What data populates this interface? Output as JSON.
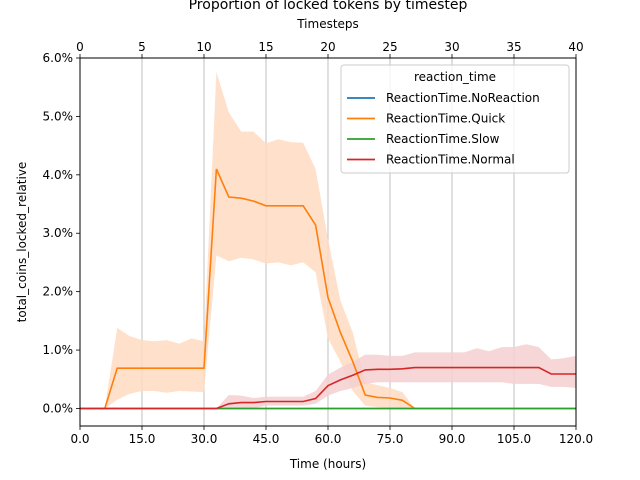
{
  "chart_data": {
    "type": "line",
    "title": "Proportion of locked tokens by timestep",
    "xlabel": "Time (hours)",
    "ylabel": "total_coins_locked_relative",
    "top_xlabel": "Timesteps",
    "xlim": [
      0,
      120
    ],
    "ylim": [
      -0.3,
      6.0
    ],
    "top_xlim": [
      0,
      40
    ],
    "x_ticks": [
      0,
      15,
      30,
      45,
      60,
      75,
      90,
      105,
      120
    ],
    "x_tick_labels": [
      "0.0",
      "15.0",
      "30.0",
      "45.0",
      "60.0",
      "75.0",
      "90.0",
      "105.0",
      "120.0"
    ],
    "top_x_ticks": [
      0,
      5,
      10,
      15,
      20,
      25,
      30,
      35,
      40
    ],
    "top_x_tick_labels": [
      "0",
      "5",
      "10",
      "15",
      "20",
      "25",
      "30",
      "35",
      "40"
    ],
    "y_ticks": [
      0,
      1,
      2,
      3,
      4,
      5,
      6
    ],
    "y_tick_labels": [
      "0.0%",
      "1.0%",
      "2.0%",
      "3.0%",
      "4.0%",
      "5.0%",
      "6.0%"
    ],
    "grid": "vertical lines at top axis ticks",
    "legend": {
      "title": "reaction_time",
      "placement": "top-right"
    },
    "series": [
      {
        "name": "ReactionTime.NoReaction",
        "color": "#1f77b4",
        "x": [
          0,
          120
        ],
        "y": [
          0,
          0
        ]
      },
      {
        "name": "ReactionTime.Quick",
        "color": "#ff7f0e",
        "band_color": "#ffdcc2",
        "x": [
          0,
          3,
          6,
          9,
          12,
          15,
          18,
          21,
          24,
          27,
          30,
          33,
          36,
          39,
          42,
          45,
          48,
          51,
          54,
          57,
          60,
          63,
          66,
          69,
          72,
          75,
          78,
          81,
          84,
          87,
          90,
          93,
          96,
          99,
          102,
          105,
          108,
          111,
          114,
          117,
          120
        ],
        "y": [
          0,
          0,
          0,
          0.69,
          0.69,
          0.69,
          0.69,
          0.69,
          0.69,
          0.69,
          0.69,
          4.1,
          3.62,
          3.6,
          3.55,
          3.47,
          3.47,
          3.47,
          3.47,
          3.14,
          1.9,
          1.3,
          0.8,
          0.23,
          0.19,
          0.18,
          0.14,
          0,
          0,
          0,
          0,
          0,
          0,
          0,
          0,
          0,
          0,
          0,
          0,
          0,
          0
        ],
        "lower": [
          0,
          0,
          0,
          0.15,
          0.25,
          0.3,
          0.3,
          0.27,
          0.3,
          0.29,
          0.28,
          2.62,
          2.52,
          2.58,
          2.55,
          2.48,
          2.5,
          2.45,
          2.5,
          2.33,
          1.2,
          0.8,
          0.3,
          0.05,
          0.02,
          0.01,
          0,
          0,
          0,
          0,
          0,
          0,
          0,
          0,
          0,
          0,
          0,
          0,
          0,
          0,
          0
        ],
        "upper": [
          0,
          0,
          0,
          1.38,
          1.24,
          1.17,
          1.15,
          1.17,
          1.11,
          1.2,
          1.15,
          5.76,
          5.07,
          4.74,
          4.74,
          4.54,
          4.61,
          4.56,
          4.55,
          4.1,
          2.9,
          1.85,
          1.3,
          0.45,
          0.4,
          0.35,
          0.28,
          0,
          0,
          0,
          0,
          0,
          0,
          0,
          0,
          0,
          0,
          0,
          0,
          0,
          0
        ]
      },
      {
        "name": "ReactionTime.Slow",
        "color": "#2ca02c",
        "x": [
          0,
          120
        ],
        "y": [
          0,
          0
        ]
      },
      {
        "name": "ReactionTime.Normal",
        "color": "#d62728",
        "band_color": "#f5cfcf",
        "x": [
          0,
          3,
          6,
          9,
          12,
          15,
          18,
          21,
          24,
          27,
          30,
          33,
          36,
          39,
          42,
          45,
          48,
          51,
          54,
          57,
          60,
          63,
          66,
          69,
          72,
          75,
          78,
          81,
          84,
          87,
          90,
          93,
          96,
          99,
          102,
          105,
          108,
          111,
          114,
          117,
          120
        ],
        "y": [
          0,
          0,
          0,
          0,
          0,
          0,
          0,
          0,
          0,
          0,
          0,
          0,
          0.08,
          0.1,
          0.1,
          0.12,
          0.12,
          0.12,
          0.12,
          0.17,
          0.39,
          0.49,
          0.57,
          0.66,
          0.67,
          0.67,
          0.68,
          0.7,
          0.7,
          0.7,
          0.7,
          0.7,
          0.7,
          0.7,
          0.7,
          0.7,
          0.7,
          0.7,
          0.59,
          0.59,
          0.59
        ],
        "lower": [
          0,
          0,
          0,
          0,
          0,
          0,
          0,
          0,
          0,
          0,
          0,
          0,
          0.0,
          0.0,
          0.0,
          0.05,
          0.05,
          0.05,
          0.05,
          0.08,
          0.22,
          0.3,
          0.35,
          0.42,
          0.45,
          0.45,
          0.45,
          0.45,
          0.45,
          0.45,
          0.45,
          0.45,
          0.45,
          0.45,
          0.45,
          0.42,
          0.42,
          0.42,
          0.37,
          0.37,
          0.35
        ],
        "upper": [
          0,
          0,
          0,
          0,
          0,
          0,
          0,
          0,
          0,
          0,
          0,
          0,
          0.23,
          0.22,
          0.18,
          0.2,
          0.2,
          0.2,
          0.2,
          0.3,
          0.58,
          0.7,
          0.8,
          0.92,
          0.92,
          0.9,
          0.9,
          0.96,
          0.96,
          0.96,
          0.96,
          0.96,
          1.03,
          0.98,
          1.05,
          1.05,
          1.1,
          1.05,
          0.84,
          0.86,
          0.9
        ]
      }
    ]
  }
}
